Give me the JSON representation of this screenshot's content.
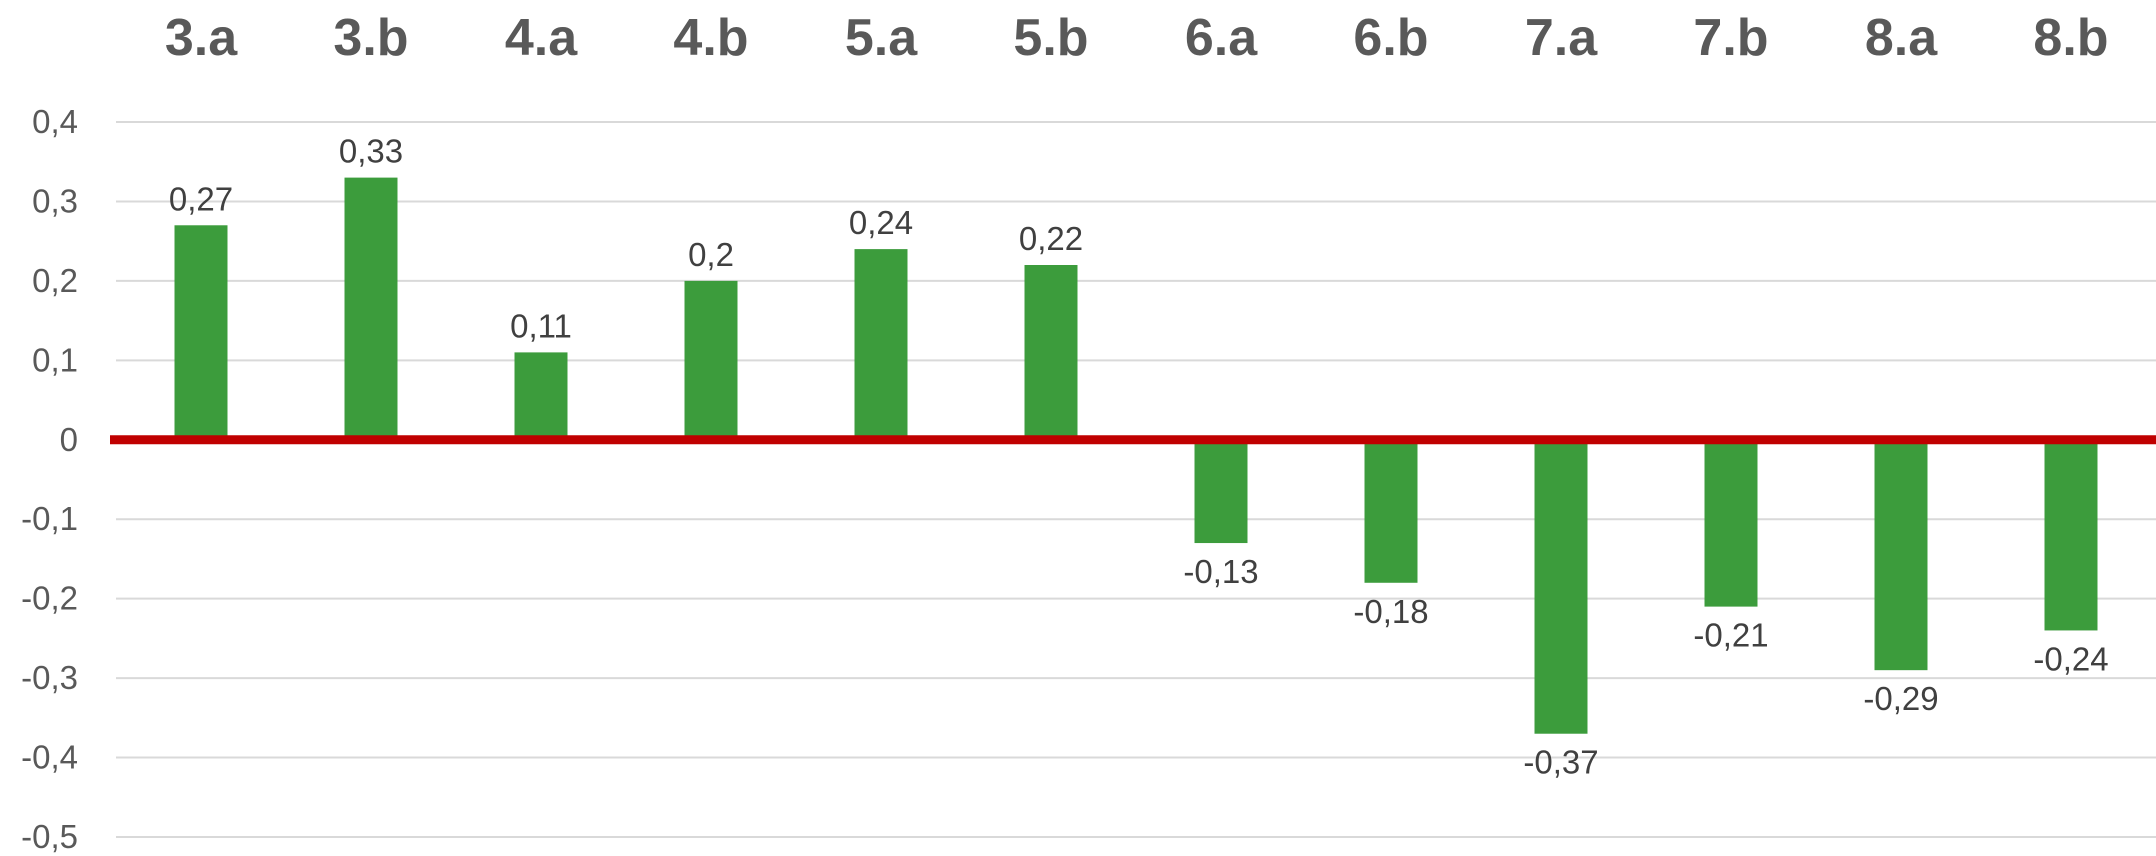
{
  "colors": {
    "bar": "#3c9c3c",
    "zero_line": "#c00000",
    "grid": "#d9d9d9",
    "category_text": "#595959",
    "tick_text": "#595959",
    "data_label_text": "#404040",
    "background": "#ffffff"
  },
  "chart_data": {
    "type": "bar",
    "categories": [
      "3.a",
      "3.b",
      "4.a",
      "4.b",
      "5.a",
      "5.b",
      "6.a",
      "6.b",
      "7.a",
      "7.b",
      "8.a",
      "8.b"
    ],
    "values": [
      0.27,
      0.33,
      0.11,
      0.2,
      0.24,
      0.22,
      -0.13,
      -0.18,
      -0.37,
      -0.21,
      -0.29,
      -0.24
    ],
    "data_labels": [
      "0,27",
      "0,33",
      "0,11",
      "0,2",
      "0,24",
      "0,22",
      "-0,13",
      "-0,18",
      "-0,37",
      "-0,21",
      "-0,29",
      "-0,24"
    ],
    "y_ticks": [
      0.4,
      0.3,
      0.2,
      0.1,
      0,
      -0.1,
      -0.2,
      -0.3,
      -0.4,
      -0.5
    ],
    "y_tick_labels": [
      "0,4",
      "0,3",
      "0,2",
      "0,1",
      "0",
      "-0,1",
      "-0,2",
      "-0,3",
      "-0,4",
      "-0,5"
    ],
    "ylim": [
      -0.5,
      0.4
    ],
    "category_axis_position": "top",
    "zero_line_emphasized": true,
    "grid": true,
    "legend": "none",
    "title": "",
    "xlabel": "",
    "ylabel": ""
  }
}
